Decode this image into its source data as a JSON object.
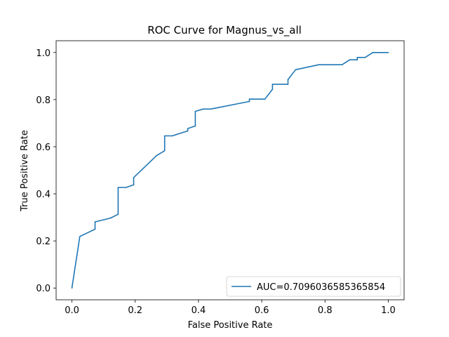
{
  "chart_data": {
    "type": "line",
    "title": "ROC Curve for Magnus_vs_all",
    "xlabel": "False Positive Rate",
    "ylabel": "True Positive Rate",
    "xlim": [
      -0.05,
      1.05
    ],
    "ylim": [
      -0.05,
      1.05
    ],
    "xticks": [
      "0.0",
      "0.2",
      "0.4",
      "0.6",
      "0.8",
      "1.0"
    ],
    "yticks": [
      "0.0",
      "0.2",
      "0.4",
      "0.6",
      "0.8",
      "1.0"
    ],
    "grid": false,
    "legend_position": "lower-right",
    "series": [
      {
        "name": "AUC=0.7096036585365854",
        "color": "#1f77b4",
        "x": [
          0.0,
          0.025,
          0.073,
          0.073,
          0.122,
          0.122,
          0.146,
          0.146,
          0.171,
          0.195,
          0.195,
          0.268,
          0.293,
          0.293,
          0.317,
          0.366,
          0.366,
          0.39,
          0.39,
          0.415,
          0.439,
          0.561,
          0.561,
          0.61,
          0.634,
          0.634,
          0.683,
          0.683,
          0.707,
          0.78,
          0.854,
          0.878,
          0.902,
          0.902,
          0.927,
          0.951,
          1.0
        ],
        "y": [
          0.0,
          0.219,
          0.25,
          0.281,
          0.297,
          0.297,
          0.313,
          0.427,
          0.427,
          0.438,
          0.469,
          0.563,
          0.583,
          0.646,
          0.646,
          0.667,
          0.677,
          0.688,
          0.75,
          0.76,
          0.76,
          0.792,
          0.802,
          0.802,
          0.844,
          0.865,
          0.865,
          0.885,
          0.927,
          0.948,
          0.948,
          0.969,
          0.969,
          0.979,
          0.979,
          1.0,
          1.0
        ]
      }
    ]
  }
}
